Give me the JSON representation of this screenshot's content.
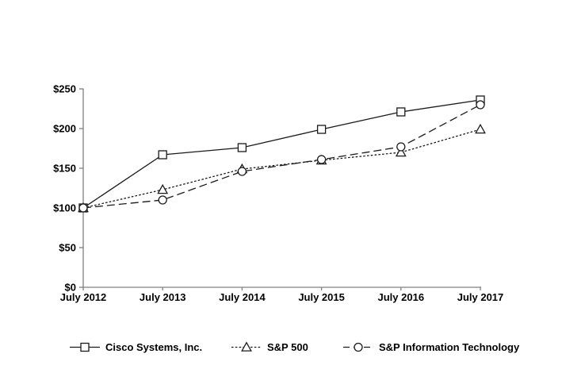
{
  "chart_data": {
    "type": "line",
    "title": "",
    "xlabel": "",
    "ylabel": "",
    "categories": [
      "July 2012",
      "July 2013",
      "July 2014",
      "July 2015",
      "July 2016",
      "July 2017"
    ],
    "series": [
      {
        "name": "Cisco Systems, Inc.",
        "marker": "square",
        "line": "solid",
        "values": [
          100,
          167,
          176,
          199,
          221,
          236
        ]
      },
      {
        "name": "S&P 500",
        "marker": "triangle",
        "line": "dotted",
        "values": [
          100,
          123,
          149,
          160,
          170,
          199
        ]
      },
      {
        "name": "S&P Information Technology",
        "marker": "circle",
        "line": "dashed",
        "values": [
          100,
          110,
          146,
          161,
          177,
          230
        ]
      }
    ],
    "y_ticks": [
      {
        "v": 0,
        "label": "$0"
      },
      {
        "v": 50,
        "label": "$50"
      },
      {
        "v": 100,
        "label": "$100"
      },
      {
        "v": 150,
        "label": "$150"
      },
      {
        "v": 200,
        "label": "$200"
      },
      {
        "v": 250,
        "label": "$250"
      }
    ],
    "ylim": [
      0,
      250
    ],
    "grid": false,
    "legend_position": "bottom",
    "colors": {
      "line": "#1a1a1a",
      "axis": "#808080",
      "text": "#000000",
      "marker_fill": "#ffffff"
    }
  }
}
